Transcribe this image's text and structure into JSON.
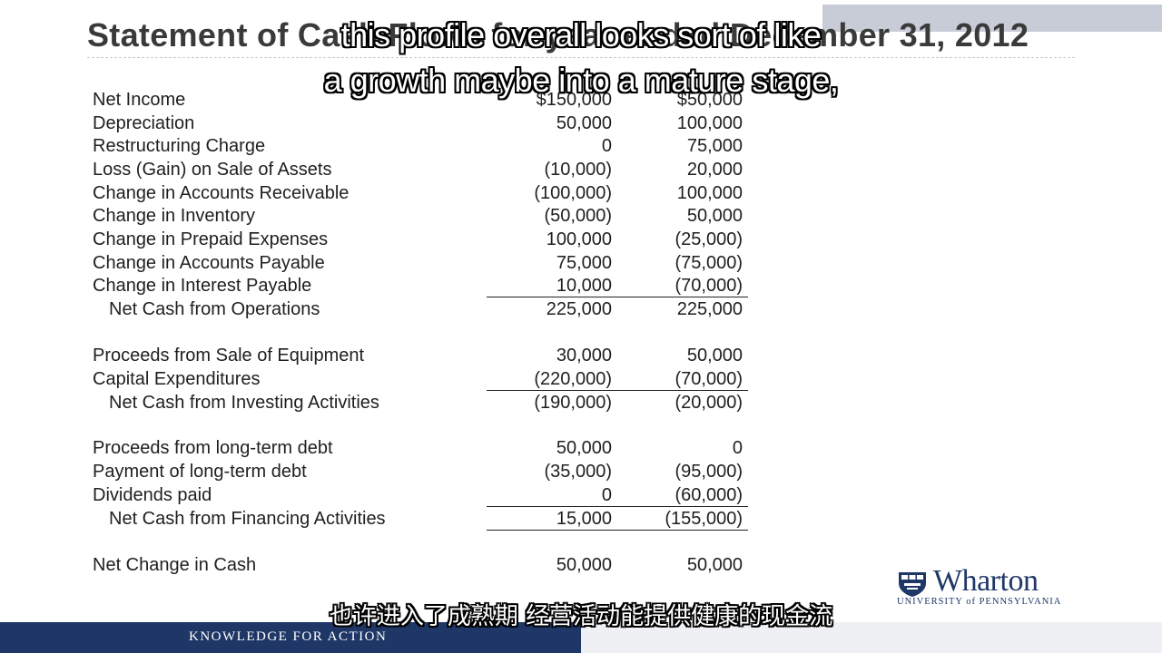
{
  "slide": {
    "title": "Statement of Cash Flows for year ended December 31, 2012"
  },
  "captions": {
    "line1": "this profile overall looks sort of like",
    "line2": "a growth maybe into a mature stage,",
    "chinese": "也许进入了成熟期 经营活动能提供健康的现金流"
  },
  "statement": {
    "rows": [
      {
        "label": "Net Income",
        "col1": "$150,000",
        "col2": "$50,000"
      },
      {
        "label": "Depreciation",
        "col1": "50,000",
        "col2": "100,000"
      },
      {
        "label": "Restructuring Charge",
        "col1": "0",
        "col2": "75,000"
      },
      {
        "label": "Loss (Gain) on Sale of Assets",
        "col1": "(10,000)",
        "col2": "20,000"
      },
      {
        "label": "Change in Accounts Receivable",
        "col1": "(100,000)",
        "col2": "100,000"
      },
      {
        "label": "Change in Inventory",
        "col1": "(50,000)",
        "col2": "50,000"
      },
      {
        "label": "Change in Prepaid Expenses",
        "col1": "100,000",
        "col2": "(25,000)"
      },
      {
        "label": "Change in Accounts Payable",
        "col1": "75,000",
        "col2": "(75,000)"
      },
      {
        "label": "Change in Interest Payable",
        "col1": "10,000",
        "col2": "(70,000)"
      },
      {
        "label": "Net Cash from Operations",
        "col1": "225,000",
        "col2": "225,000"
      },
      {
        "label": "Proceeds from Sale of Equipment",
        "col1": "30,000",
        "col2": "50,000"
      },
      {
        "label": "Capital Expenditures",
        "col1": "(220,000)",
        "col2": "(70,000)"
      },
      {
        "label": "Net Cash from Investing Activities",
        "col1": "(190,000)",
        "col2": "(20,000)"
      },
      {
        "label": "Proceeds from long-term debt",
        "col1": "50,000",
        "col2": "0"
      },
      {
        "label": "Payment of long-term debt",
        "col1": "(35,000)",
        "col2": "(95,000)"
      },
      {
        "label": "Dividends paid",
        "col1": "0",
        "col2": "(60,000)"
      },
      {
        "label": "Net Cash from Financing Activities",
        "col1": "15,000",
        "col2": "(155,000)"
      },
      {
        "label": "Net Change in Cash",
        "col1": "50,000",
        "col2": "50,000"
      }
    ]
  },
  "branding": {
    "logo_word": "Wharton",
    "logo_subtitle": "UNIVERSITY of PENNSYLVANIA",
    "tagline": "KNOWLEDGE FOR ACTION",
    "navy": "#1f3767"
  }
}
